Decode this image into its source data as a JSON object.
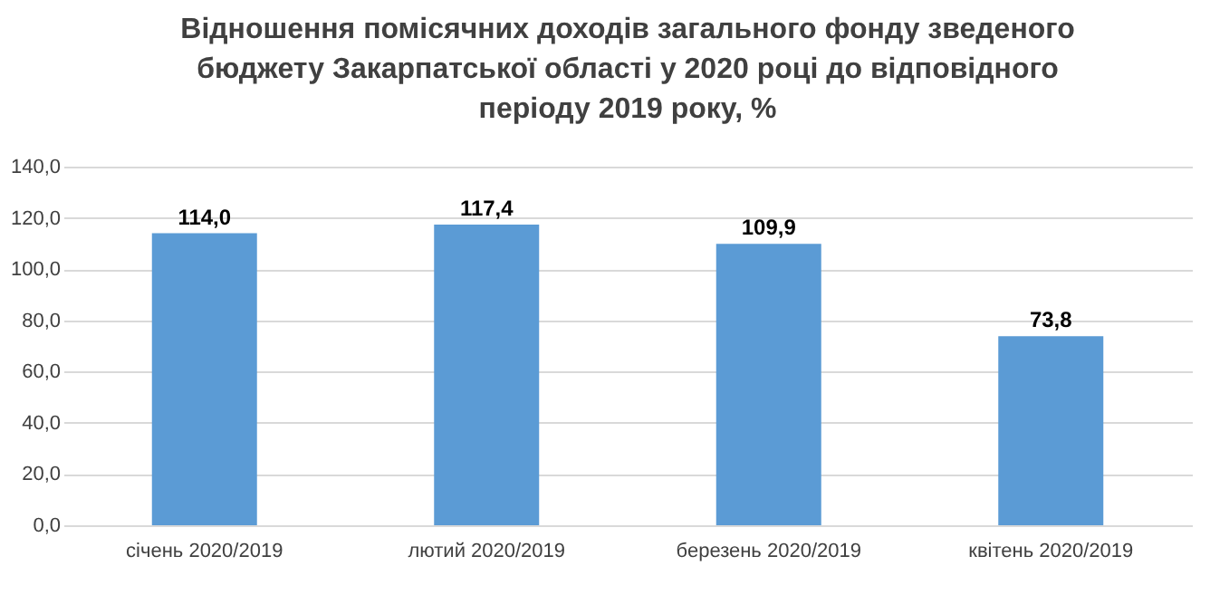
{
  "chart_data": {
    "type": "bar",
    "title": [
      "Відношення помісячних доходів загального фонду зведеного",
      "бюджету Закарпатської області у 2020 році до відповідного",
      "періоду 2019 року, %"
    ],
    "categories": [
      "січень 2020/2019",
      "лютий 2020/2019",
      "березень 2020/2019",
      "квітень 2020/2019"
    ],
    "values": [
      114.0,
      117.4,
      109.9,
      73.8
    ],
    "value_labels": [
      "114,0",
      "117,4",
      "109,9",
      "73,8"
    ],
    "color": "#5b9bd5",
    "ylim": [
      0,
      140
    ],
    "yticks": [
      {
        "value": 0,
        "label": "0,0"
      },
      {
        "value": 20,
        "label": "20,0"
      },
      {
        "value": 40,
        "label": "40,0"
      },
      {
        "value": 60,
        "label": "60,0"
      },
      {
        "value": 80,
        "label": "80,0"
      },
      {
        "value": 100,
        "label": "100,0"
      },
      {
        "value": 120,
        "label": "120,0"
      },
      {
        "value": 140,
        "label": "140,0"
      }
    ],
    "grid": "y"
  }
}
